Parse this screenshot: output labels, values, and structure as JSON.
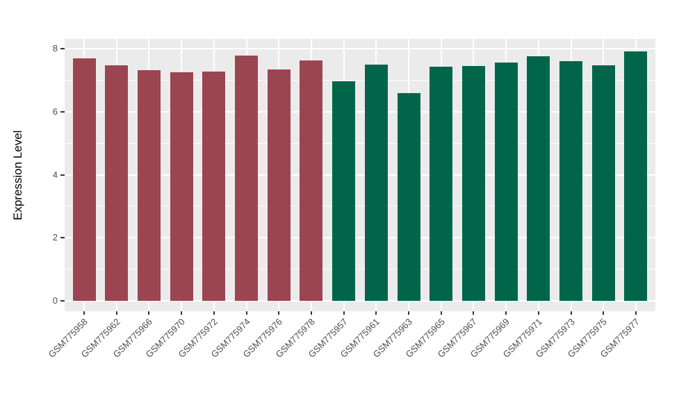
{
  "figure": {
    "background": "#FFFFFF",
    "panel_background": "#EBEBEB",
    "gridline_color": "#FFFFFF",
    "tick_mark_color": "#333333",
    "axis_text_color": "#4D4D4D",
    "axis_title_color": "#000000"
  },
  "chart_data": {
    "type": "bar",
    "title": "",
    "xlabel": "",
    "ylabel": "Expression Level",
    "ylim": [
      0,
      8
    ],
    "yticks": [
      0,
      2,
      4,
      6,
      8
    ],
    "ytick_labels": [
      "0",
      "2",
      "4",
      "6",
      "8"
    ],
    "yminor": [
      1,
      3,
      5,
      7
    ],
    "grid": true,
    "legend": "none",
    "x_tick_angle": 45,
    "categories": [
      "GSM775958",
      "GSM775962",
      "GSM775966",
      "GSM775970",
      "GSM775972",
      "GSM775974",
      "GSM775976",
      "GSM775978",
      "GSM775957",
      "GSM775961",
      "GSM775963",
      "GSM775965",
      "GSM775967",
      "GSM775969",
      "GSM775971",
      "GSM775973",
      "GSM775975",
      "GSM775977"
    ],
    "values": [
      7.69,
      7.47,
      7.32,
      7.26,
      7.27,
      7.77,
      7.33,
      7.63,
      6.96,
      7.49,
      6.59,
      7.43,
      7.45,
      7.55,
      7.75,
      7.6,
      7.47,
      7.91
    ],
    "groups": [
      "group1",
      "group1",
      "group1",
      "group1",
      "group1",
      "group1",
      "group1",
      "group1",
      "group2",
      "group2",
      "group2",
      "group2",
      "group2",
      "group2",
      "group2",
      "group2",
      "group2",
      "group2"
    ],
    "group_colors": {
      "group1": "#9B4552",
      "group2": "#01654A"
    }
  }
}
